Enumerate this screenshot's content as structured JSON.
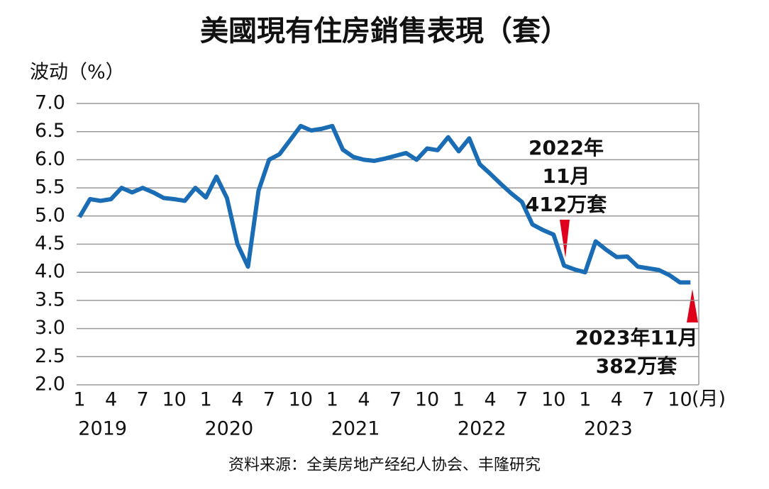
{
  "chart_data": {
    "type": "line",
    "title": "美國現有住房銷售表現（套）",
    "y_label": "波动（%）",
    "x_label": "(月)",
    "source": "资料来源：全美房地产经纪人协会、丰隆研究",
    "categories": [
      "1",
      null,
      null,
      "4",
      null,
      null,
      "7",
      null,
      null,
      "10",
      null,
      null,
      "1",
      null,
      null,
      "4",
      null,
      null,
      "7",
      null,
      null,
      "10",
      null,
      null,
      "1",
      null,
      null,
      "4",
      null,
      null,
      "7",
      null,
      null,
      "10",
      null,
      null,
      "1",
      null,
      null,
      "4",
      null,
      null,
      "7",
      null,
      null,
      "10",
      null,
      null,
      "1",
      null,
      null,
      "4",
      null,
      null,
      "7",
      null,
      null,
      "10",
      null
    ],
    "years": [
      "2019",
      "2020",
      "2021",
      "2022",
      "2023"
    ],
    "values": [
      4.98,
      5.3,
      5.27,
      5.3,
      5.5,
      5.42,
      5.5,
      5.42,
      5.32,
      5.3,
      5.27,
      5.5,
      5.33,
      5.7,
      5.32,
      4.5,
      4.1,
      5.45,
      6.0,
      6.1,
      6.35,
      6.6,
      6.52,
      6.55,
      6.6,
      6.18,
      6.05,
      6.0,
      5.98,
      6.02,
      6.07,
      6.12,
      6.0,
      6.2,
      6.17,
      6.4,
      6.15,
      6.38,
      5.92,
      5.75,
      5.57,
      5.4,
      5.25,
      4.85,
      4.75,
      4.67,
      4.12,
      4.05,
      4.0,
      4.55,
      4.4,
      4.27,
      4.28,
      4.1,
      4.07,
      4.04,
      3.95,
      3.82,
      3.82
    ],
    "color": "#1a6db5",
    "ylim": [
      2,
      7
    ],
    "yticks": [
      {
        "value": 2,
        "label": "2.0"
      },
      2.5,
      {
        "value": 3,
        "label": "3.0"
      },
      3.5,
      {
        "value": 4,
        "label": "4.0"
      },
      4.5,
      {
        "value": 5,
        "label": "5.0"
      },
      5.5,
      {
        "value": 6,
        "label": "6.0"
      },
      6.5,
      {
        "value": 7,
        "label": "7.0"
      }
    ],
    "grid": true,
    "annotations": [
      {
        "lines": [
          "2022年",
          "11月",
          "412万套"
        ]
      },
      {
        "lines": [
          "2023年11月",
          "382万套"
        ]
      }
    ]
  }
}
